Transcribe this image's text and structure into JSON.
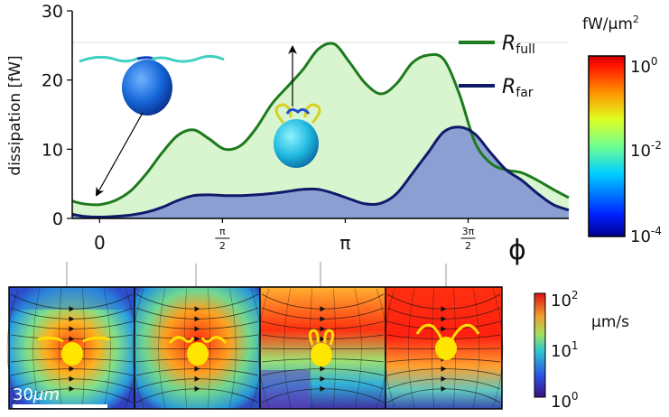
{
  "chart_data": {
    "type": "area",
    "ylabel": "dissipation [fW]",
    "xlabel": "ϕ",
    "ylim": [
      0,
      30
    ],
    "yticks": [
      0,
      10,
      20,
      30
    ],
    "xticks": [
      {
        "value": 0,
        "label": "0"
      },
      {
        "value": 1.5708,
        "label": "π/2",
        "num": "π",
        "den": "2"
      },
      {
        "value": 3.1416,
        "label": "π"
      },
      {
        "value": 4.7124,
        "label": "3π/2",
        "num": "3π",
        "den": "2"
      }
    ],
    "xlim": [
      -0.35,
      6.0
    ],
    "legend": {
      "position": "top-right"
    },
    "series": [
      {
        "name": "R_full",
        "name_main": "R",
        "name_sub": "full",
        "color": "#1e7a1e",
        "fill": "#d9f5cf",
        "x": [
          -0.35,
          -0.2,
          0,
          0.2,
          0.4,
          0.6,
          0.8,
          1.0,
          1.2,
          1.4,
          1.6,
          1.8,
          2.0,
          2.2,
          2.4,
          2.6,
          2.8,
          3.0,
          3.2,
          3.4,
          3.6,
          3.8,
          4.0,
          4.2,
          4.4,
          4.6,
          4.8,
          5.0,
          5.2,
          5.4,
          5.6,
          5.8,
          6.0
        ],
        "y": [
          2.5,
          2.1,
          2.0,
          2.6,
          4.0,
          6.5,
          9.5,
          12.0,
          12.8,
          11.5,
          10.0,
          10.5,
          13.0,
          16.5,
          19.0,
          21.5,
          24.5,
          25.2,
          22.5,
          19.5,
          18.0,
          19.5,
          22.5,
          23.6,
          23.0,
          18.0,
          11.0,
          8.0,
          7.0,
          6.6,
          5.5,
          4.2,
          3.0
        ]
      },
      {
        "name": "R_far",
        "name_main": "R",
        "name_sub": "far",
        "color": "#101a6b",
        "fill": "#8c9fd2",
        "x": [
          -0.35,
          -0.2,
          0,
          0.2,
          0.4,
          0.6,
          0.8,
          1.0,
          1.2,
          1.4,
          1.6,
          1.8,
          2.0,
          2.2,
          2.4,
          2.6,
          2.8,
          3.0,
          3.2,
          3.4,
          3.6,
          3.8,
          4.0,
          4.2,
          4.4,
          4.6,
          4.8,
          5.0,
          5.2,
          5.4,
          5.6,
          5.8,
          6.0
        ],
        "y": [
          0.6,
          0.3,
          0.2,
          0.3,
          0.5,
          0.9,
          1.6,
          2.6,
          3.3,
          3.4,
          3.3,
          3.3,
          3.4,
          3.6,
          3.9,
          4.2,
          4.2,
          3.6,
          2.8,
          2.1,
          2.2,
          3.6,
          6.5,
          9.5,
          12.5,
          13.2,
          12.2,
          9.5,
          7.0,
          5.5,
          3.6,
          2.0,
          1.2
        ]
      }
    ]
  },
  "colorbar_top": {
    "unit_main": "fW/μm",
    "unit_exp": "2",
    "ticks": [
      {
        "mant": "10",
        "exp": "0"
      },
      {
        "mant": "10",
        "exp": "-2"
      },
      {
        "mant": "10",
        "exp": "-4"
      }
    ]
  },
  "colorbar_bottom": {
    "unit": "μm/s",
    "ticks": [
      {
        "mant": "10",
        "exp": "2"
      },
      {
        "mant": "10",
        "exp": "1"
      },
      {
        "mant": "10",
        "exp": "0"
      }
    ]
  },
  "scale_bar": {
    "main": "30",
    "unit": "μm"
  },
  "colors": {
    "jet": [
      "#00008f",
      "#0040ff",
      "#00c0ff",
      "#40ffbf",
      "#c0ff40",
      "#ffc000",
      "#ff4000",
      "#c00000"
    ]
  }
}
